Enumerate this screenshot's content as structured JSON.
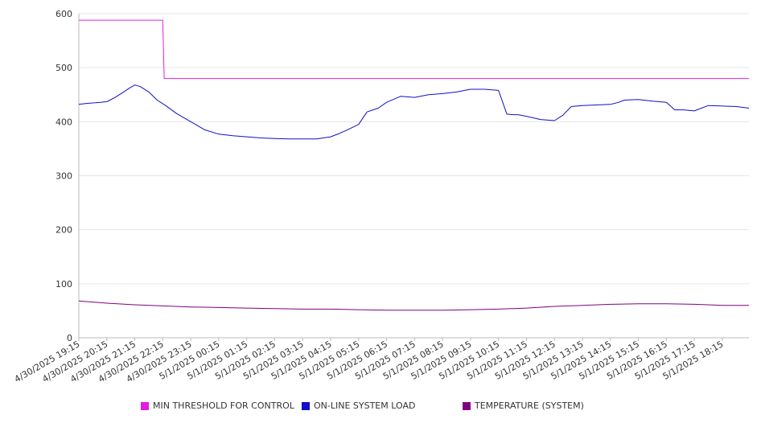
{
  "chart_data": {
    "type": "line",
    "ylim": [
      0,
      600
    ],
    "yticks": [
      0,
      100,
      200,
      300,
      400,
      500,
      600
    ],
    "xticks": [
      "4/30/2025 19:15",
      "4/30/2025 20:15",
      "4/30/2025 21:15",
      "4/30/2025 22:15",
      "4/30/2025 23:15",
      "5/1/2025 00:15",
      "5/1/2025 01:15",
      "5/1/2025 02:15",
      "5/1/2025 03:15",
      "5/1/2025 04:15",
      "5/1/2025 05:15",
      "5/1/2025 06:15",
      "5/1/2025 07:15",
      "5/1/2025 08:15",
      "5/1/2025 09:15",
      "5/1/2025 10:15",
      "5/1/2025 11:15",
      "5/1/2025 12:15",
      "5/1/2025 13:15",
      "5/1/2025 14:15",
      "5/1/2025 15:15",
      "5/1/2025 16:15",
      "5/1/2025 17:15",
      "5/1/2025 18:15"
    ],
    "grid": true,
    "legend_position": "bottom",
    "series": [
      {
        "name": "MIN THRESHOLD FOR CONTROL",
        "color": "#e01ee0",
        "hours": [
          0,
          3,
          3.05,
          6,
          9,
          12,
          15,
          18,
          21,
          23.95
        ],
        "values": [
          588,
          588,
          480,
          480,
          480,
          480,
          480,
          480,
          480,
          480
        ]
      },
      {
        "name": "ON-LINE SYSTEM LOAD",
        "color": "#1010c8",
        "hours": [
          0,
          0.3,
          0.6,
          1.0,
          1.3,
          1.6,
          1.8,
          2.0,
          2.2,
          2.5,
          2.8,
          3.1,
          3.5,
          4.0,
          4.5,
          5.0,
          5.5,
          6.0,
          6.5,
          7.0,
          7.5,
          8.0,
          8.5,
          9.0,
          9.3,
          9.6,
          10.0,
          10.3,
          10.7,
          11.0,
          11.5,
          12.0,
          12.5,
          13.0,
          13.5,
          14.0,
          14.5,
          15.0,
          15.3,
          15.5,
          15.7,
          16.0,
          16.5,
          17.0,
          17.3,
          17.6,
          18.0,
          18.5,
          19.0,
          19.3,
          19.5,
          20.0,
          20.5,
          21.0,
          21.3,
          21.6,
          22.0,
          22.5,
          23.0,
          23.5,
          23.95
        ],
        "values": [
          432,
          434,
          435,
          437,
          445,
          455,
          462,
          468,
          465,
          455,
          440,
          430,
          415,
          400,
          385,
          377,
          374,
          372,
          370,
          369,
          368,
          368,
          368,
          372,
          378,
          385,
          395,
          418,
          425,
          436,
          447,
          445,
          450,
          452,
          455,
          460,
          460,
          458,
          414,
          413,
          413,
          410,
          404,
          402,
          412,
          428,
          430,
          431,
          432,
          436,
          440,
          441,
          438,
          436,
          422,
          422,
          420,
          430,
          429,
          428,
          425
        ]
      },
      {
        "name": "TEMPERATURE (SYSTEM)",
        "color": "#800080",
        "hours": [
          0,
          1,
          2,
          3,
          4,
          5,
          6,
          7,
          8,
          9,
          10,
          11,
          12,
          13,
          14,
          15,
          16,
          17,
          18,
          19,
          20,
          21,
          22,
          23,
          23.95
        ],
        "values": [
          68,
          64,
          61,
          59,
          57,
          56,
          55,
          54,
          53,
          53,
          52,
          51,
          51,
          51,
          52,
          53,
          55,
          58,
          60,
          62,
          63,
          63,
          62,
          60,
          60
        ]
      }
    ]
  }
}
